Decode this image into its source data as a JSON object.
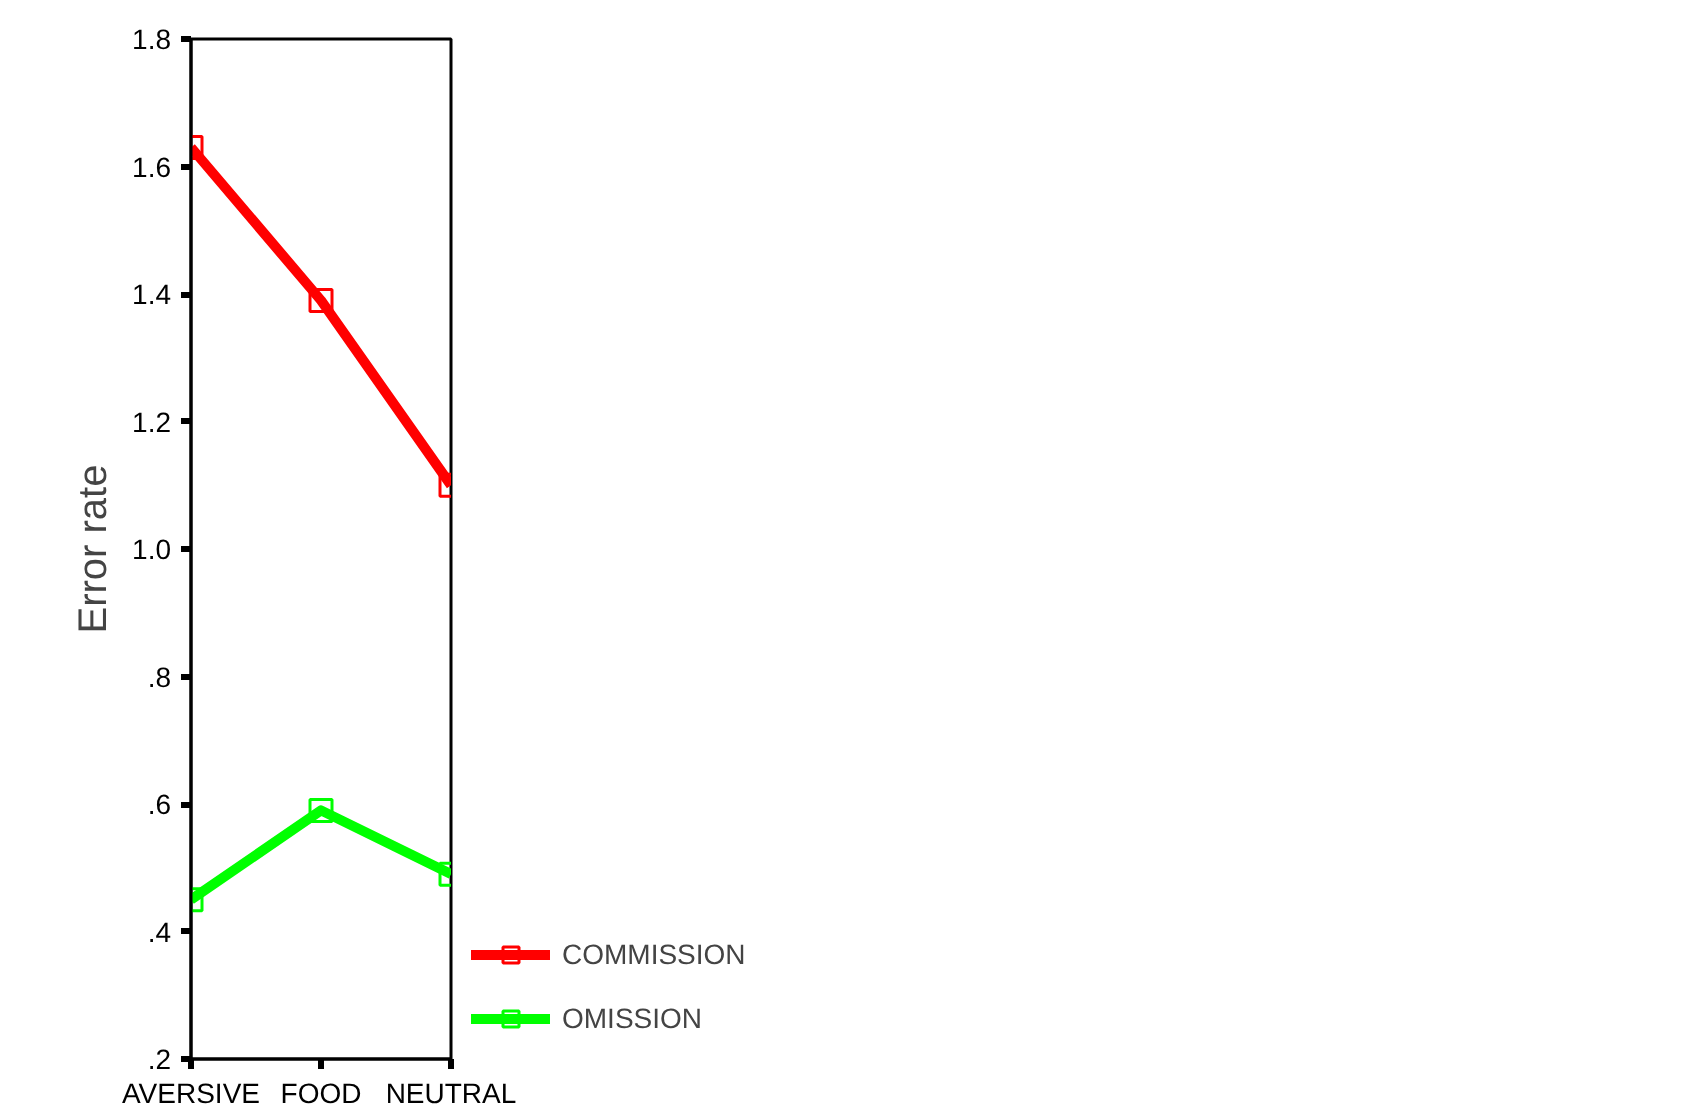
{
  "chart_data": {
    "type": "line",
    "ylabel": "Error rate",
    "categories": [
      "AVERSIVE",
      "FOOD",
      "NEUTRAL"
    ],
    "series": [
      {
        "name": "COMMISSION",
        "color": "#ff0000",
        "values": [
          1.63,
          1.39,
          1.1
        ]
      },
      {
        "name": "OMISSION",
        "color": "#00ff00",
        "values": [
          0.45,
          0.59,
          0.49
        ]
      }
    ],
    "ylim": [
      0.2,
      1.8
    ],
    "yticks": [
      {
        "value": 0.2,
        "label": ".2"
      },
      {
        "value": 0.4,
        "label": ".4"
      },
      {
        "value": 0.6,
        "label": ".6"
      },
      {
        "value": 0.8,
        "label": ".8"
      },
      {
        "value": 1.0,
        "label": "1.0"
      },
      {
        "value": 1.2,
        "label": "1.2"
      },
      {
        "value": 1.4,
        "label": "1.4"
      },
      {
        "value": 1.6,
        "label": "1.6"
      },
      {
        "value": 1.8,
        "label": "1.8"
      }
    ],
    "grid": false,
    "legend": "right",
    "marker": "square",
    "line_style": "solid"
  }
}
